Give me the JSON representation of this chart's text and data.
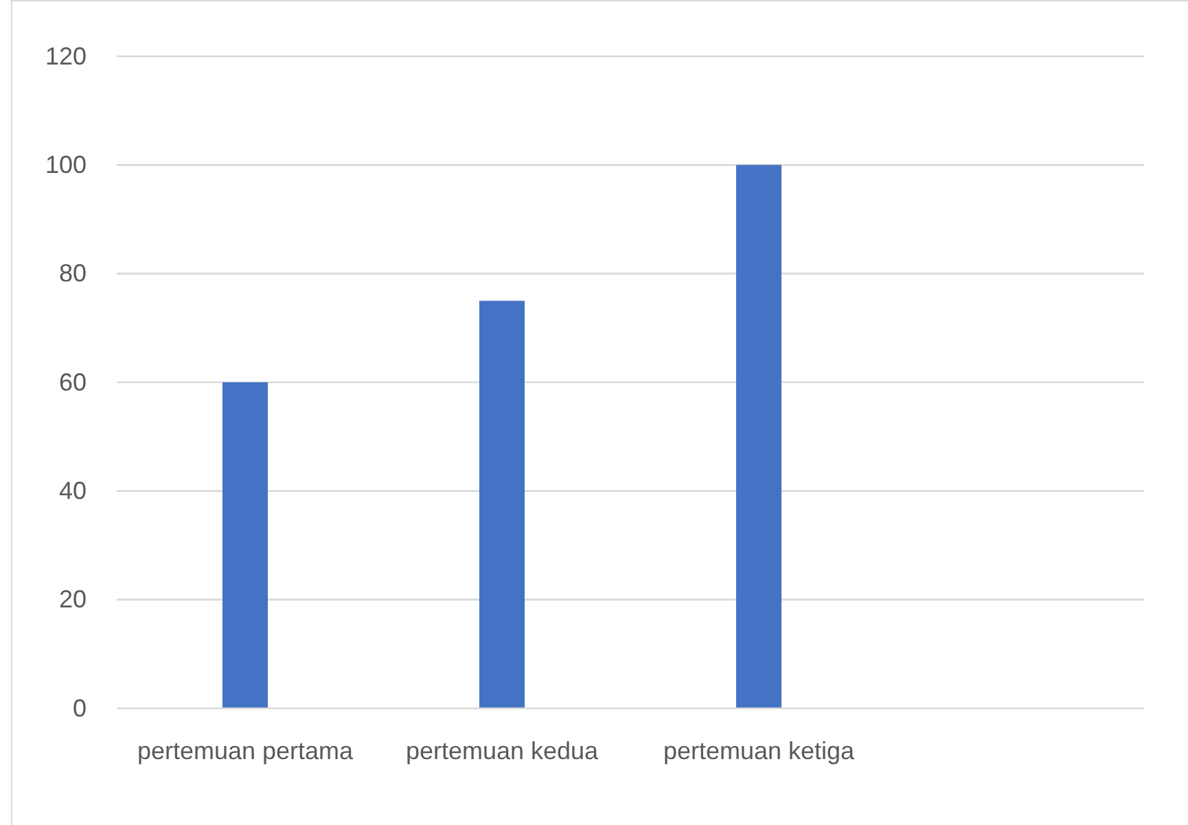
{
  "chart_data": {
    "type": "bar",
    "categories": [
      "pertemuan pertama",
      "pertemuan kedua",
      "pertemuan ketiga",
      null
    ],
    "values": [
      60,
      75,
      100,
      null
    ],
    "color": "#4472c4",
    "ylim": [
      0,
      120
    ],
    "yticks": [
      0,
      20,
      40,
      60,
      80,
      100,
      120
    ],
    "grid": "y"
  }
}
